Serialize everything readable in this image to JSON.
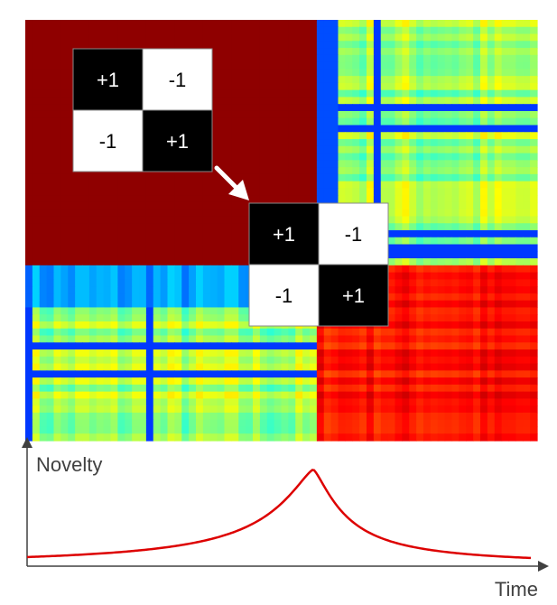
{
  "kernel_top": {
    "cells": [
      {
        "label": "+1",
        "fill": "#000000",
        "text": "#ffffff"
      },
      {
        "label": "-1",
        "fill": "#ffffff",
        "text": "#000000"
      },
      {
        "label": "-1",
        "fill": "#ffffff",
        "text": "#000000"
      },
      {
        "label": "+1",
        "fill": "#000000",
        "text": "#ffffff"
      }
    ]
  },
  "kernel_bottom": {
    "cells": [
      {
        "label": "+1",
        "fill": "#000000",
        "text": "#ffffff"
      },
      {
        "label": "-1",
        "fill": "#ffffff",
        "text": "#000000"
      },
      {
        "label": "-1",
        "fill": "#ffffff",
        "text": "#000000"
      },
      {
        "label": "+1",
        "fill": "#000000",
        "text": "#ffffff"
      }
    ]
  },
  "arrow": {
    "color": "#ffffff",
    "icon": "arrow-down-right-icon"
  },
  "novelty": {
    "ylabel": "Novelty",
    "xlabel": "Time",
    "curve_color": "#dd0000",
    "axis_color": "#404040"
  },
  "colors": {
    "dark_red": "#8f0000",
    "red": "#cc1100",
    "cyan": "#22ccee",
    "blue": "#0033dd",
    "yellow": "#ddee33"
  }
}
